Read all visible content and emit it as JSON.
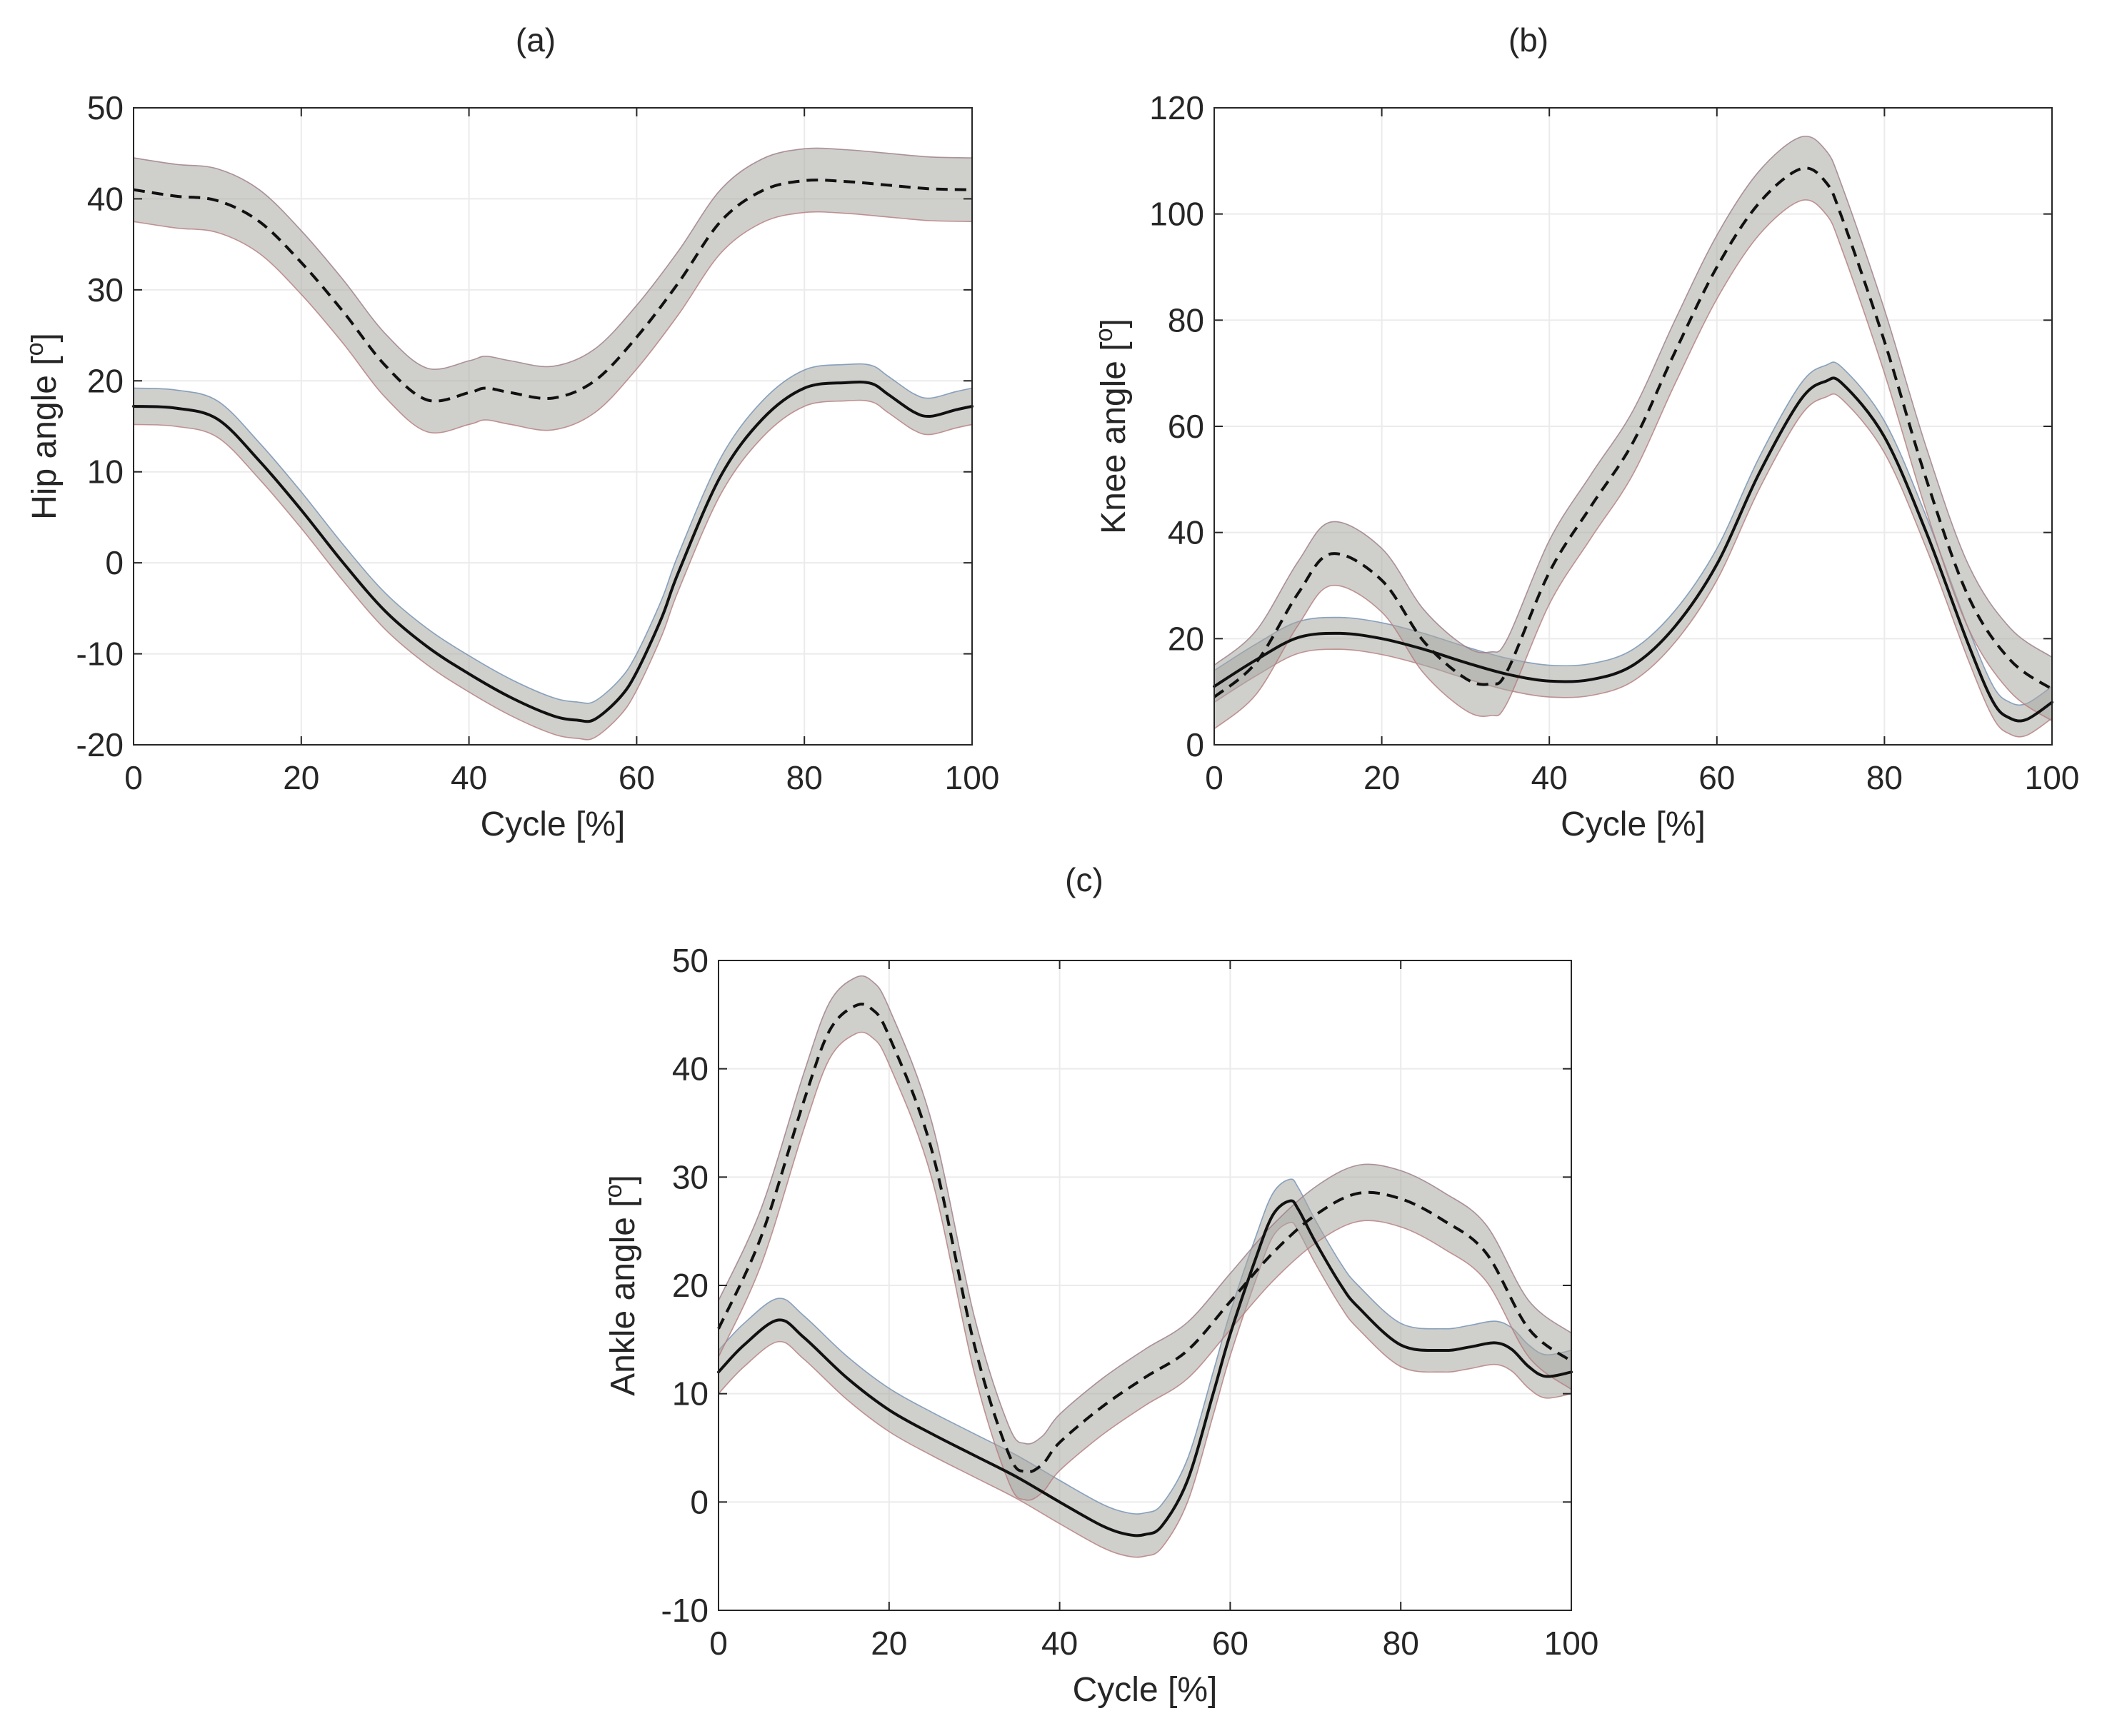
{
  "chart_data": [
    {
      "type": "line",
      "panel_label": "(a)",
      "xlabel": "Cycle [%]",
      "ylabel": "Hip angle [",
      "ylabel_unit": "o",
      "ylabel_close": "]",
      "xlim": [
        0,
        100
      ],
      "ylim": [
        -20,
        50
      ],
      "xticks": [
        0,
        20,
        40,
        60,
        80,
        100
      ],
      "yticks": [
        -20,
        -10,
        0,
        10,
        20,
        30,
        40,
        50
      ],
      "grid": true,
      "band_halfwidth": [
        2.0,
        3.5
      ],
      "series": [
        {
          "name": "solid",
          "style": "solid",
          "x": [
            0,
            5,
            10,
            15,
            20,
            25,
            30,
            35,
            40,
            45,
            50,
            53,
            55,
            58,
            60,
            63,
            65,
            70,
            75,
            80,
            85,
            88,
            90,
            93,
            95,
            98,
            100
          ],
          "y": [
            17.2,
            17,
            15.8,
            11.2,
            5.8,
            0,
            -5.3,
            -9.2,
            -12.2,
            -14.8,
            -16.8,
            -17.3,
            -17.2,
            -14.8,
            -12,
            -6,
            -1,
            9.5,
            15.8,
            19.2,
            19.8,
            19.7,
            18.5,
            16.6,
            16.1,
            16.8,
            17.2
          ],
          "sd": [
            2,
            2,
            2,
            2,
            2,
            2,
            2,
            2,
            2,
            2,
            2,
            2,
            2,
            2,
            2,
            2,
            2,
            2,
            2,
            2,
            2,
            2,
            2,
            2,
            2,
            2,
            2
          ]
        },
        {
          "name": "dashed",
          "style": "dashed",
          "x": [
            0,
            5,
            10,
            15,
            20,
            25,
            30,
            35,
            40,
            42,
            45,
            50,
            55,
            60,
            65,
            70,
            75,
            80,
            85,
            90,
            95,
            100
          ],
          "y": [
            41,
            40.3,
            39.8,
            37.5,
            33,
            27.6,
            21.7,
            17.9,
            18.7,
            19.2,
            18.7,
            18.1,
            20,
            24.8,
            30.8,
            37.5,
            40.9,
            42,
            41.9,
            41.5,
            41.1,
            41
          ],
          "sd": [
            3.5,
            3.5,
            3.5,
            3.5,
            3.5,
            3.5,
            3.5,
            3.5,
            3.5,
            3.5,
            3.5,
            3.5,
            3.5,
            3.5,
            3.5,
            3.5,
            3.5,
            3.5,
            3.5,
            3.5,
            3.5,
            3.5
          ]
        }
      ]
    },
    {
      "type": "line",
      "panel_label": "(b)",
      "xlabel": "Cycle [%]",
      "ylabel": "Knee angle [",
      "ylabel_unit": "o",
      "ylabel_close": "]",
      "xlim": [
        0,
        100
      ],
      "ylim": [
        0,
        120
      ],
      "xticks": [
        0,
        20,
        40,
        60,
        80,
        100
      ],
      "yticks": [
        0,
        20,
        40,
        60,
        80,
        100,
        120
      ],
      "grid": true,
      "band_halfwidth": [
        3.0,
        6.0
      ],
      "series": [
        {
          "name": "solid",
          "style": "solid",
          "x": [
            0,
            5,
            10,
            15,
            20,
            25,
            30,
            35,
            40,
            45,
            50,
            55,
            60,
            65,
            70,
            73,
            75,
            80,
            85,
            90,
            93,
            95,
            97,
            100
          ],
          "y": [
            11,
            16,
            20.2,
            21,
            20,
            18,
            15.5,
            13.3,
            12,
            12.3,
            15,
            22.3,
            34,
            51,
            65,
            68.5,
            68,
            58,
            40,
            19,
            8,
            5,
            4.8,
            8
          ],
          "sd": [
            3,
            3,
            3,
            3,
            3,
            3,
            3,
            3,
            3,
            3,
            3,
            3,
            3,
            3,
            3,
            3,
            3,
            3,
            3,
            3,
            3,
            3,
            3,
            3
          ]
        },
        {
          "name": "dashed",
          "style": "dashed",
          "x": [
            0,
            5,
            10,
            14,
            20,
            25,
            30,
            33,
            35,
            40,
            45,
            50,
            55,
            60,
            65,
            70,
            73,
            75,
            80,
            85,
            90,
            95,
            100
          ],
          "y": [
            9,
            15.5,
            28.5,
            36,
            31,
            19.5,
            12.5,
            11.5,
            14,
            32.5,
            45,
            57,
            74,
            90,
            102,
            108.5,
            106,
            99,
            76,
            50,
            28,
            16,
            10.5
          ],
          "sd": [
            6,
            6,
            6,
            6,
            6,
            6,
            6,
            6,
            6,
            6,
            6,
            6,
            6,
            6,
            6,
            6,
            6,
            6,
            6,
            6,
            6,
            6,
            6
          ]
        }
      ]
    },
    {
      "type": "line",
      "panel_label": "(c)",
      "xlabel": "Cycle [%]",
      "ylabel": "Ankle angle [",
      "ylabel_unit": "o",
      "ylabel_close": "]",
      "xlim": [
        0,
        100
      ],
      "ylim": [
        -10,
        50
      ],
      "xticks": [
        0,
        20,
        40,
        60,
        80,
        100
      ],
      "yticks": [
        -10,
        0,
        10,
        20,
        30,
        40,
        50
      ],
      "grid": true,
      "band_halfwidth": [
        2.0,
        2.6
      ],
      "series": [
        {
          "name": "solid",
          "style": "solid",
          "x": [
            0,
            3,
            7,
            10,
            15,
            20,
            25,
            30,
            35,
            40,
            45,
            48,
            50,
            52,
            55,
            58,
            60,
            63,
            65,
            67,
            68,
            70,
            73,
            75,
            80,
            85,
            88,
            91,
            93,
            95,
            97,
            100
          ],
          "y": [
            12,
            14.5,
            16.8,
            15.2,
            11.5,
            8.5,
            6.3,
            4.3,
            2.3,
            0,
            -2.2,
            -3,
            -3,
            -2.2,
            2,
            10,
            15.5,
            22.5,
            26.5,
            27.8,
            27,
            24,
            20,
            18,
            14.5,
            14,
            14.3,
            14.7,
            14.1,
            12.5,
            11.6,
            12
          ],
          "sd": [
            2,
            2,
            2,
            2,
            2,
            2,
            2,
            2,
            2,
            2,
            2,
            2,
            2,
            2,
            2,
            2,
            2,
            2,
            2,
            2,
            2,
            2,
            2,
            2,
            2,
            2,
            2,
            2,
            2,
            2,
            2,
            2
          ]
        },
        {
          "name": "dashed",
          "style": "dashed",
          "x": [
            0,
            5,
            10,
            13,
            16,
            18,
            20,
            25,
            30,
            34,
            36,
            38,
            40,
            45,
            50,
            55,
            60,
            65,
            70,
            75,
            80,
            85,
            90,
            95,
            100
          ],
          "y": [
            16,
            24.5,
            37,
            43.5,
            45.8,
            45.5,
            43,
            32.5,
            14.5,
            4.5,
            2.8,
            3.5,
            5.5,
            8.8,
            11.5,
            14,
            18.5,
            23,
            26.5,
            28.5,
            28,
            26,
            23,
            16,
            13
          ],
          "sd": [
            2.6,
            2.6,
            2.6,
            2.6,
            2.6,
            2.6,
            2.6,
            2.6,
            2.6,
            2.6,
            2.6,
            2.6,
            2.6,
            2.6,
            2.6,
            2.6,
            2.6,
            2.6,
            2.6,
            2.6,
            2.6,
            2.6,
            2.6,
            2.6,
            2.6
          ]
        }
      ]
    }
  ]
}
